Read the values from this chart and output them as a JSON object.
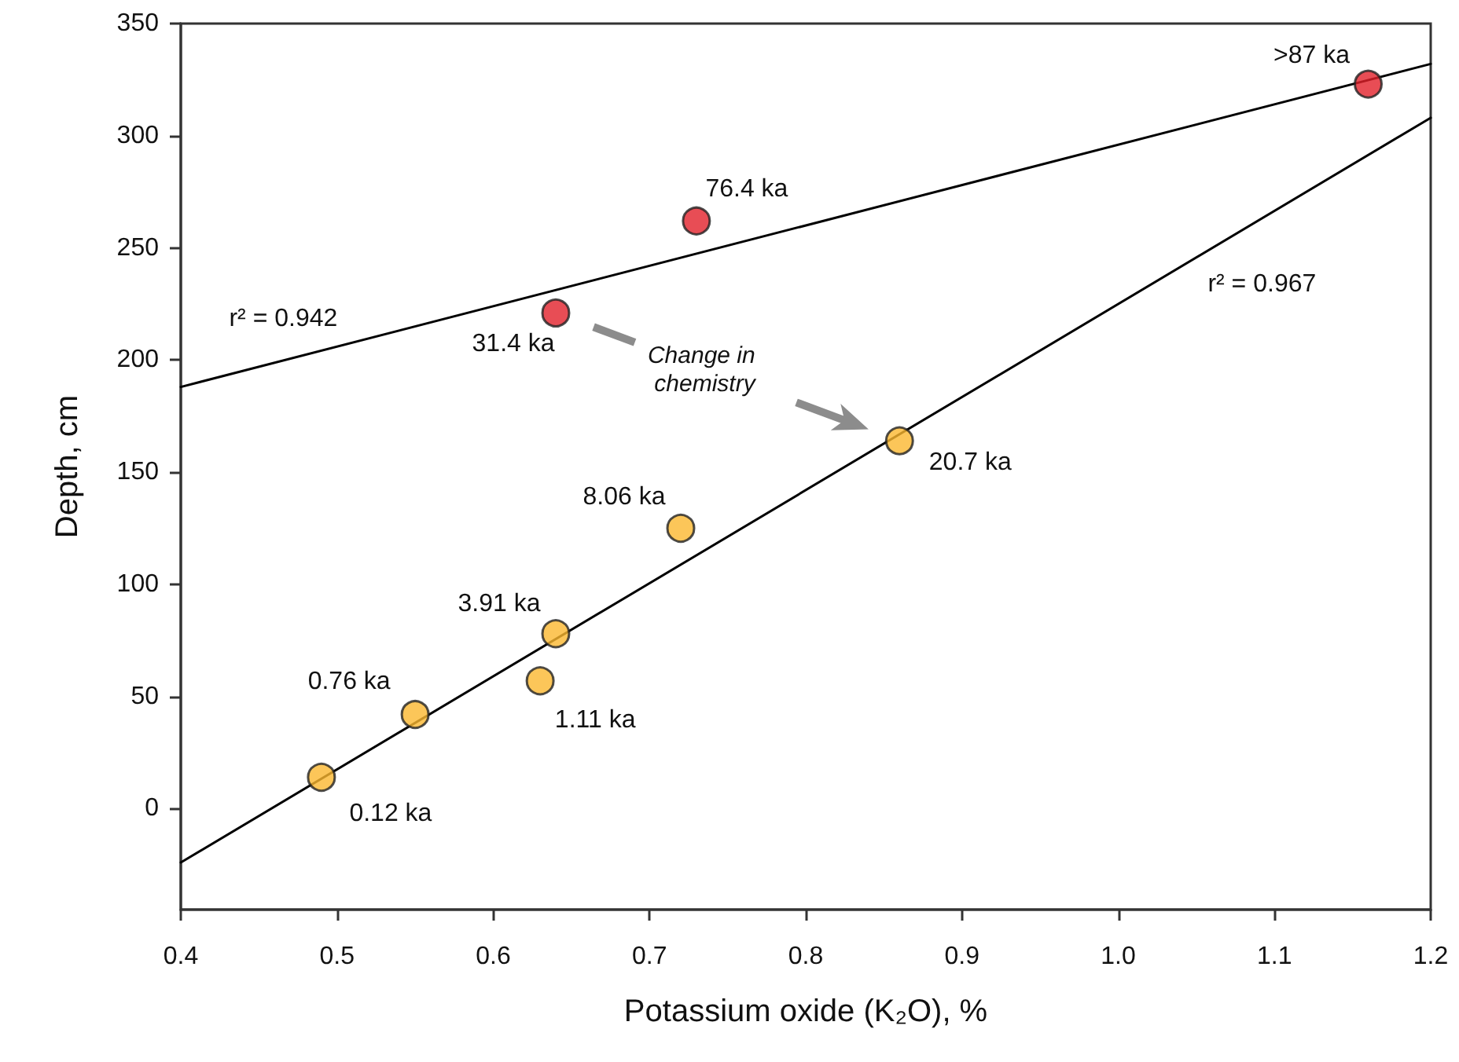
{
  "chart_data": {
    "type": "scatter",
    "xlabel": "Potassium oxide (K₂O), %",
    "ylabel": "Depth, cm",
    "xlim": [
      0.4,
      1.2
    ],
    "xticks": [
      0.4,
      0.5,
      0.6,
      0.7,
      0.8,
      0.9,
      {
        "value": 1,
        "label": "1.0"
      },
      1.1,
      1.2
    ],
    "ylim": [
      -45,
      350
    ],
    "yticks": [
      0,
      50,
      100,
      150,
      200,
      250,
      300,
      350
    ],
    "marker": "circle",
    "series": [
      {
        "color": "#fbb830",
        "x": [
          0.49,
          0.55,
          0.63,
          0.64,
          0.72,
          0.86
        ],
        "values": [
          14,
          42,
          57,
          78,
          125,
          164
        ]
      },
      {
        "color": "#e2202a",
        "x": [
          0.64,
          0.73,
          1.16
        ],
        "values": [
          221,
          262,
          323
        ]
      },
      {
        "type": "line",
        "marker": "none",
        "color": "#000000",
        "x": [
          0.4,
          1.2
        ],
        "values": [
          188,
          332
        ]
      },
      {
        "type": "line",
        "marker": "none",
        "color": "#000000",
        "x": [
          0.4,
          1.2
        ],
        "values": [
          -24,
          308
        ]
      }
    ],
    "annotations": [
      {
        "text": "0.12 ka",
        "x": 0.49,
        "y": 14
      },
      {
        "text": "0.76 ka",
        "x": 0.55,
        "y": 42
      },
      {
        "text": "1.11 ka",
        "x": 0.63,
        "y": 57
      },
      {
        "text": "3.91 ka",
        "x": 0.64,
        "y": 78
      },
      {
        "text": "8.06 ka",
        "x": 0.72,
        "y": 125
      },
      {
        "text": "20.7 ka",
        "x": 0.86,
        "y": 164
      },
      {
        "text": "31.4 ka",
        "x": 0.64,
        "y": 221
      },
      {
        "text": "76.4 ka",
        "x": 0.73,
        "y": 262
      },
      {
        "text": ">87 ka",
        "x": 1.16,
        "y": 323
      },
      "r² = 0.942",
      "r² = 0.967",
      "Change in chemistry"
    ]
  }
}
